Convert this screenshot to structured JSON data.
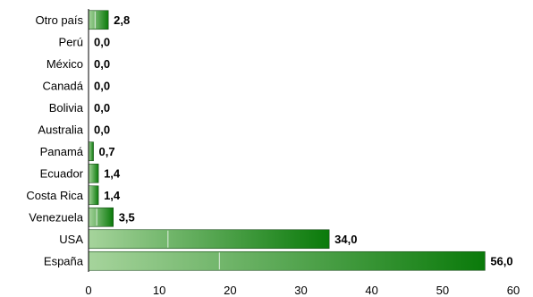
{
  "chart_data": {
    "type": "bar",
    "orientation": "horizontal",
    "categories": [
      "Otro país",
      "Perú",
      "México",
      "Canadá",
      "Bolivia",
      "Australia",
      "Panamá",
      "Ecuador",
      "Costa Rica",
      "Venezuela",
      "USA",
      "España"
    ],
    "values": [
      2.8,
      0.0,
      0.0,
      0.0,
      0.0,
      0.0,
      0.7,
      1.4,
      1.4,
      3.5,
      34.0,
      56.0
    ],
    "value_labels": [
      "2,8",
      "0,0",
      "0,0",
      "0,0",
      "0,0",
      "0,0",
      "0,7",
      "1,4",
      "1,4",
      "3,5",
      "34,0",
      "56,0"
    ],
    "xlim": [
      0,
      60
    ],
    "x_ticks": [
      0,
      10,
      20,
      30,
      40,
      50,
      60
    ],
    "title": "",
    "xlabel": "",
    "ylabel": "",
    "grid": false,
    "colors": {
      "bar_light": "#a6d49c",
      "bar_dark": "#0a7a0a",
      "axis": "#000000"
    }
  }
}
